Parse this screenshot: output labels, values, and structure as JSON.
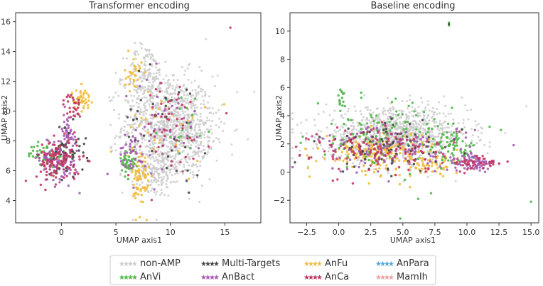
{
  "chart_data": [
    {
      "type": "scatter",
      "title": "Transformer encoding",
      "xlabel": "UMAP axis1",
      "ylabel": "UMAP axis2",
      "xlim": [
        -4.2,
        18.3
      ],
      "ylim": [
        2.5,
        16.6
      ],
      "xticks": [
        0,
        5,
        10,
        15
      ],
      "yticks": [
        4,
        6,
        8,
        10,
        12,
        14,
        16
      ],
      "xtick_labels": [
        "0",
        "5",
        "10",
        "15"
      ],
      "ytick_labels": [
        "4",
        "6",
        "8",
        "10",
        "12",
        "14",
        "16"
      ],
      "clusters": [
        {
          "series": "non-AMP",
          "cx": 9.8,
          "cy": 9.0,
          "sx": 2.1,
          "sy": 1.7,
          "n": 950
        },
        {
          "series": "non-AMP",
          "cx": 7.8,
          "cy": 12.3,
          "sx": 0.9,
          "sy": 1.1,
          "n": 160
        },
        {
          "series": "non-AMP",
          "cx": 8.8,
          "cy": 6.0,
          "sx": 1.0,
          "sy": 0.7,
          "n": 160
        },
        {
          "series": "non-AMP",
          "cx": 12.2,
          "cy": 8.2,
          "sx": 0.9,
          "sy": 1.2,
          "n": 120
        },
        {
          "series": "AnBact",
          "cx": -0.2,
          "cy": 6.8,
          "sx": 0.9,
          "sy": 0.8,
          "n": 110
        },
        {
          "series": "AnCa",
          "cx": -0.3,
          "cy": 6.7,
          "sx": 1.0,
          "sy": 0.75,
          "n": 120
        },
        {
          "series": "AnVi",
          "cx": -1.3,
          "cy": 7.1,
          "sx": 0.9,
          "sy": 0.35,
          "n": 50
        },
        {
          "series": "Multi-Targets",
          "cx": 0.5,
          "cy": 7.3,
          "sx": 0.9,
          "sy": 0.9,
          "n": 50
        },
        {
          "series": "AnBact",
          "cx": 0.6,
          "cy": 8.8,
          "sx": 0.25,
          "sy": 0.6,
          "n": 35
        },
        {
          "series": "AnCa",
          "cx": 1.0,
          "cy": 10.3,
          "sx": 0.4,
          "sy": 0.45,
          "n": 30
        },
        {
          "series": "AnFu",
          "cx": 1.8,
          "cy": 10.8,
          "sx": 0.45,
          "sy": 0.35,
          "n": 45
        },
        {
          "series": "AnFu",
          "cx": 7.3,
          "cy": 5.3,
          "sx": 0.4,
          "sy": 1.2,
          "n": 70
        },
        {
          "series": "AnFu",
          "cx": 6.6,
          "cy": 12.4,
          "sx": 0.4,
          "sy": 0.6,
          "n": 30
        },
        {
          "series": "AnFu",
          "cx": 9.2,
          "cy": 8.6,
          "sx": 2.0,
          "sy": 1.6,
          "n": 35
        },
        {
          "series": "AnVi",
          "cx": 6.1,
          "cy": 6.6,
          "sx": 0.35,
          "sy": 0.4,
          "n": 40
        },
        {
          "series": "AnBact",
          "cx": 6.6,
          "cy": 7.3,
          "sx": 0.6,
          "sy": 0.6,
          "n": 40
        },
        {
          "series": "AnCa",
          "cx": 9.6,
          "cy": 8.8,
          "sx": 2.0,
          "sy": 1.8,
          "n": 55
        },
        {
          "series": "AnBact",
          "cx": 9.6,
          "cy": 8.9,
          "sx": 2.0,
          "sy": 1.8,
          "n": 45
        },
        {
          "series": "Multi-Targets",
          "cx": 9.4,
          "cy": 9.2,
          "sx": 2.0,
          "sy": 1.8,
          "n": 35
        },
        {
          "series": "AnVi",
          "cx": 11.5,
          "cy": 9.0,
          "sx": 1.2,
          "sy": 1.2,
          "n": 20
        }
      ],
      "outliers": [
        {
          "series": "AnCa",
          "x": 15.5,
          "y": 15.6
        },
        {
          "series": "non-AMP",
          "x": 17.7,
          "y": 11.3
        },
        {
          "series": "non-AMP",
          "x": 17.1,
          "y": 8.1
        }
      ]
    },
    {
      "type": "scatter",
      "title": "Baseline encoding",
      "xlabel": "UMAP axis1",
      "ylabel": "UMAP axis2",
      "xlim": [
        -3.8,
        15.6
      ],
      "ylim": [
        -3.6,
        11.3
      ],
      "xticks": [
        -2.5,
        0.0,
        2.5,
        5.0,
        7.5,
        10.0,
        12.5,
        15.0
      ],
      "yticks": [
        -2,
        0,
        2,
        4,
        6,
        8,
        10
      ],
      "xtick_labels": [
        "−2.5",
        "0.0",
        "2.5",
        "5.0",
        "7.5",
        "10.0",
        "12.5",
        "15.0"
      ],
      "ytick_labels": [
        "−2",
        "0",
        "2",
        "4",
        "6",
        "8",
        "10"
      ],
      "clusters": [
        {
          "series": "non-AMP",
          "cx": 4.5,
          "cy": 2.6,
          "sx": 2.8,
          "sy": 0.95,
          "n": 1100
        },
        {
          "series": "AnFu",
          "cx": 3.2,
          "cy": 1.4,
          "sx": 2.3,
          "sy": 0.7,
          "n": 200
        },
        {
          "series": "AnCa",
          "cx": 3.5,
          "cy": 1.6,
          "sx": 2.8,
          "sy": 0.8,
          "n": 130
        },
        {
          "series": "AnBact",
          "cx": 4.5,
          "cy": 1.6,
          "sx": 3.0,
          "sy": 0.85,
          "n": 140
        },
        {
          "series": "Multi-Targets",
          "cx": 4.0,
          "cy": 1.8,
          "sx": 2.8,
          "sy": 0.9,
          "n": 80
        },
        {
          "series": "AnVi",
          "cx": 3.5,
          "cy": 2.6,
          "sx": 2.8,
          "sy": 1.1,
          "n": 120
        },
        {
          "series": "AnVi",
          "cx": 9.0,
          "cy": 1.8,
          "sx": 0.8,
          "sy": 0.6,
          "n": 60
        },
        {
          "series": "AnBact",
          "cx": 10.5,
          "cy": 0.6,
          "sx": 1.0,
          "sy": 0.3,
          "n": 70
        },
        {
          "series": "AnCa",
          "cx": 11.0,
          "cy": 0.6,
          "sx": 0.9,
          "sy": 0.3,
          "n": 40
        },
        {
          "series": "AnFu",
          "cx": 7.5,
          "cy": 0.5,
          "sx": 1.2,
          "sy": 0.35,
          "n": 40
        },
        {
          "series": "AnVi",
          "cx": 0.2,
          "cy": 5.3,
          "sx": 0.15,
          "sy": 0.4,
          "n": 14
        }
      ],
      "outliers": [
        {
          "series": "AnVi",
          "x": 8.6,
          "y": 10.6
        },
        {
          "series": "AnVi",
          "x": 8.6,
          "y": 10.4
        },
        {
          "series": "Multi-Targets",
          "x": 8.6,
          "y": 10.5
        },
        {
          "series": "AnVi",
          "x": 15.0,
          "y": -2.1
        },
        {
          "series": "AnVi",
          "x": 4.8,
          "y": -3.3
        },
        {
          "series": "AnVi",
          "x": 6.2,
          "y": -1.9
        },
        {
          "series": "AnVi",
          "x": 7.2,
          "y": -1.5
        },
        {
          "series": "AnCa",
          "x": 1.1,
          "y": -0.8
        },
        {
          "series": "AnFu",
          "x": 2.1,
          "y": -0.2
        }
      ]
    }
  ],
  "legend": [
    {
      "label": "non-AMP",
      "color": "#cccccc"
    },
    {
      "label": "AnVi",
      "color": "#4fb748"
    },
    {
      "label": "Multi-Targets",
      "color": "#454545"
    },
    {
      "label": "AnBact",
      "color": "#a35ab3"
    },
    {
      "label": "AnFu",
      "color": "#f2bd3c"
    },
    {
      "label": "AnCa",
      "color": "#c2375f"
    },
    {
      "label": "AnPara",
      "color": "#4da6e0"
    },
    {
      "label": "MamIh",
      "color": "#f0a0a0"
    }
  ],
  "legend_placement": "bottom-center"
}
